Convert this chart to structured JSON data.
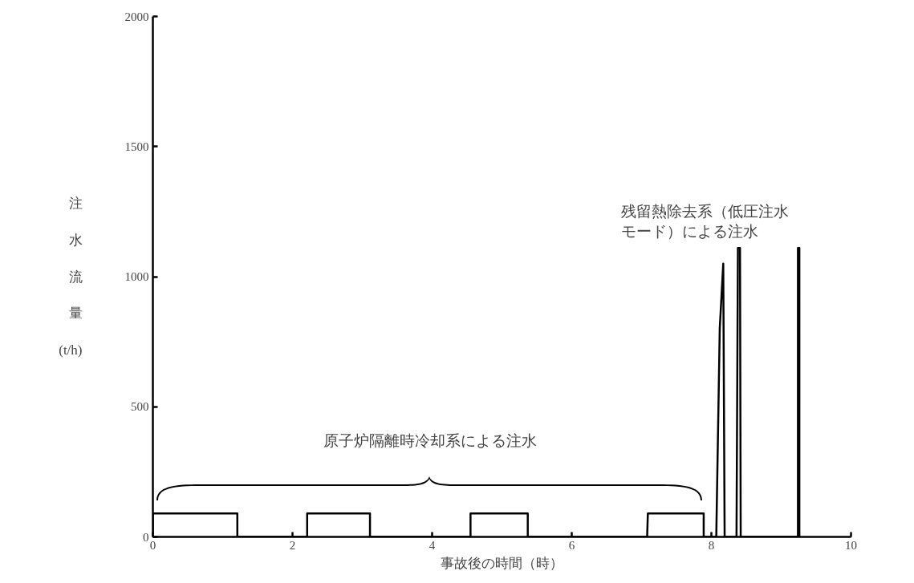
{
  "chart_data": {
    "type": "line",
    "xlabel": "事故後の時間（時）",
    "ylabel": "注水流量(t/h)",
    "x": [
      0,
      0,
      1.21,
      1.21,
      2.21,
      2.21,
      3.11,
      3.11,
      4.55,
      4.55,
      5.37,
      5.37,
      7.08,
      7.09,
      7.89,
      7.89,
      8.07,
      8.12,
      8.17,
      8.19,
      8.36,
      8.38,
      8.41,
      8.42,
      9.24,
      9.24,
      9.26,
      9.26
    ],
    "series": [
      {
        "color": "#000000",
        "values": [
          0,
          90,
          90,
          0,
          0,
          90,
          90,
          0,
          0,
          90,
          90,
          0,
          0,
          90,
          90,
          0,
          0,
          800,
          1050,
          0,
          0,
          1110,
          1110,
          0,
          0,
          1110,
          1110,
          0
        ]
      }
    ],
    "xlim": [
      0,
      10
    ],
    "ylim": [
      0,
      2000
    ],
    "xticks": [
      0,
      2,
      4,
      6,
      8,
      10
    ],
    "yticks": [
      0,
      500,
      1000,
      1500,
      2000
    ],
    "grid": false,
    "marker": "none",
    "line_style": "solid",
    "annotations": [
      "原子炉隔離時冷却系による注水",
      "残留熱除去系（低圧注水モード）による注水"
    ]
  }
}
